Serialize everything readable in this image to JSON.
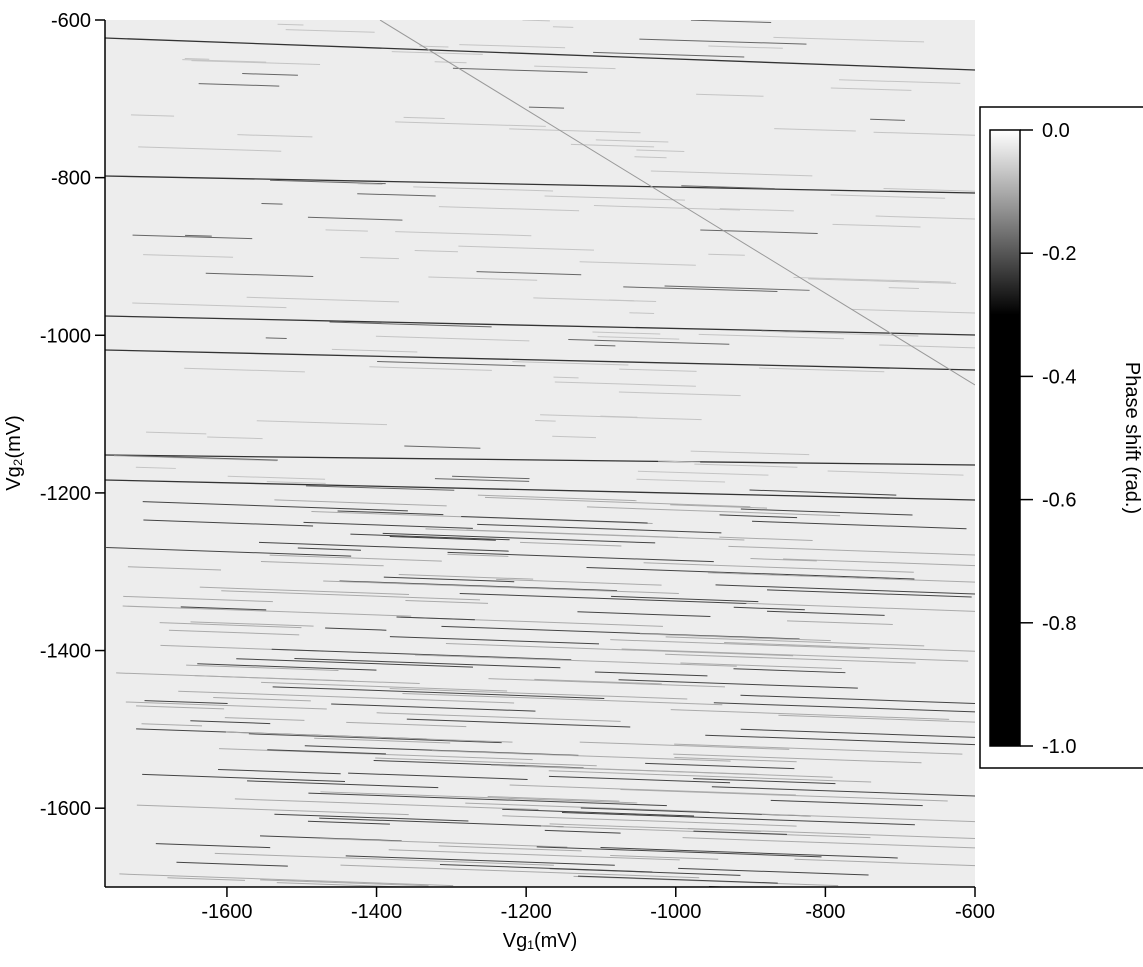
{
  "chart_data": {
    "type": "heatmap",
    "x_label": "Vg₁(mV)",
    "y_label": "Vg₂(mV)",
    "xlim": [
      -1763,
      -600
    ],
    "xticks": [
      -1600,
      -1400,
      -1200,
      -1000,
      -800,
      -600
    ],
    "ylim": [
      -1700,
      -600
    ],
    "yticks": [
      -1600,
      -1400,
      -1200,
      -1000,
      -800,
      -600
    ],
    "colorbar": {
      "label": "Phase shift (rad.)",
      "lim": [
        -1.0,
        0.0
      ],
      "ticks": [
        {
          "value": 0,
          "label": "0.0"
        },
        {
          "value": -0.2,
          "label": "-0.2"
        },
        {
          "value": -0.4,
          "label": "-0.4"
        },
        {
          "value": -0.6,
          "label": "-0.6"
        },
        {
          "value": -0.8,
          "label": "-0.8"
        },
        {
          "value": -1,
          "label": "-1.0"
        }
      ]
    }
  }
}
